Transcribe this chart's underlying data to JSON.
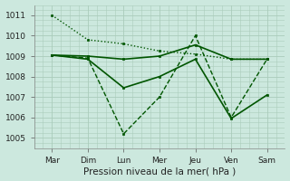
{
  "title": "",
  "xlabel": "Pression niveau de la mer( hPa )",
  "background_color": "#cce8de",
  "grid_color": "#aaccbb",
  "line_color": "#005500",
  "ylim": [
    1004.5,
    1011.5
  ],
  "days": [
    "Mar",
    "Dim",
    "Lun",
    "Mer",
    "Jeu",
    "Ven",
    "Sam"
  ],
  "x_positions": [
    0,
    1,
    2,
    3,
    4,
    5,
    6
  ],
  "lines": [
    {
      "y": [
        1011.0,
        1009.8,
        1009.6,
        1009.25,
        1009.1,
        1008.85,
        1008.85
      ],
      "style": "dotted"
    },
    {
      "y": [
        1009.05,
        1009.0,
        1008.85,
        1009.0,
        1009.55,
        1008.85,
        1008.85
      ],
      "style": "solid"
    },
    {
      "y": [
        1009.05,
        1008.85,
        1007.45,
        1008.0,
        1008.85,
        1005.95,
        1007.1
      ],
      "style": "solid"
    },
    {
      "y": [
        1009.05,
        1008.9,
        1005.2,
        1007.0,
        1010.0,
        1006.0,
        1008.85
      ],
      "style": "dashed"
    }
  ],
  "yticks": [
    1005,
    1006,
    1007,
    1008,
    1009,
    1010,
    1011
  ],
  "tick_fontsize": 6.5,
  "xlabel_fontsize": 7.5
}
